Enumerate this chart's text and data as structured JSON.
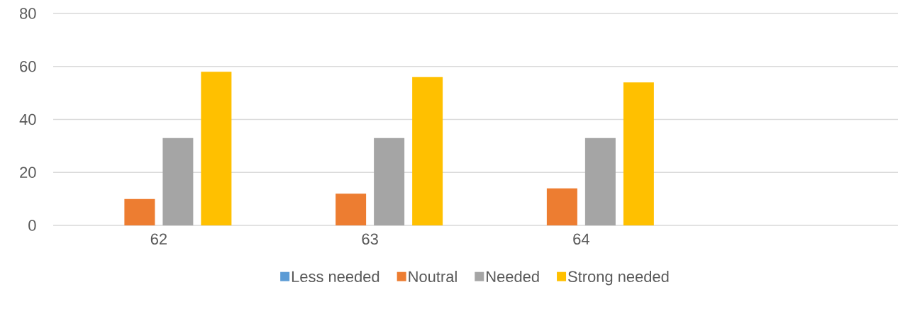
{
  "chart_data": {
    "type": "bar",
    "categories": [
      "62",
      "63",
      "64",
      null
    ],
    "series": [
      {
        "name": "Less needed",
        "color": "#5b9bd5",
        "values": [
          0,
          0,
          0,
          null
        ]
      },
      {
        "name": "Noutral",
        "color": "#ed7d31",
        "values": [
          10,
          12,
          14,
          null
        ]
      },
      {
        "name": "Needed",
        "color": "#a5a5a5",
        "values": [
          33,
          33,
          33,
          null
        ]
      },
      {
        "name": "Strong needed",
        "color": "#ffc000",
        "values": [
          58,
          56,
          54,
          null
        ]
      }
    ],
    "ylim": [
      0,
      80
    ],
    "yticks": [
      0,
      20,
      40,
      60,
      80
    ],
    "grid": "y",
    "legend": "bottom"
  }
}
